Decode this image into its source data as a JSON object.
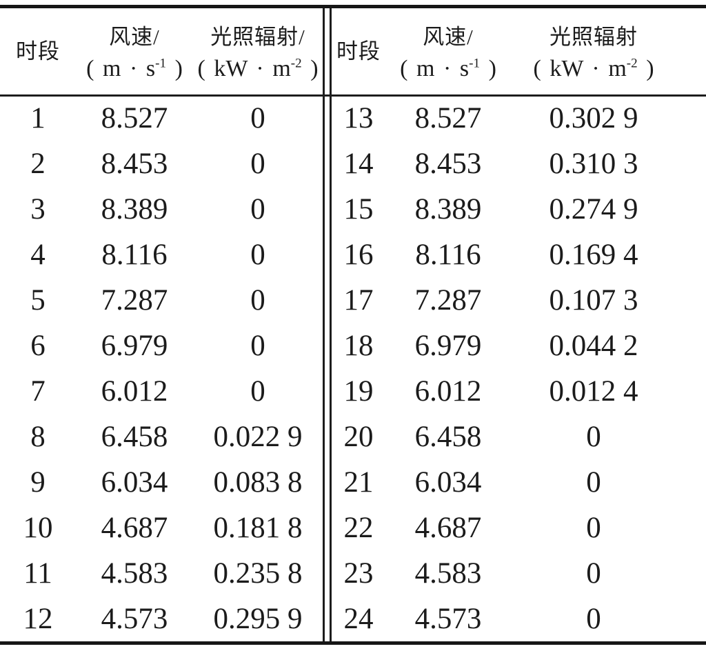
{
  "table": {
    "halves": [
      {
        "period_header": "时段",
        "wind_header": "风速/",
        "wind_unit": {
          "pre": "( m · s",
          "sup": "-1",
          "post": " )"
        },
        "irr_header": "光照辐射/",
        "irr_unit": {
          "pre": "( kW · m",
          "sup": "-2",
          "post": " )"
        },
        "rows": [
          {
            "period": "1",
            "wind": "8.527",
            "irr": "0"
          },
          {
            "period": "2",
            "wind": "8.453",
            "irr": "0"
          },
          {
            "period": "3",
            "wind": "8.389",
            "irr": "0"
          },
          {
            "period": "4",
            "wind": "8.116",
            "irr": "0"
          },
          {
            "period": "5",
            "wind": "7.287",
            "irr": "0"
          },
          {
            "period": "6",
            "wind": "6.979",
            "irr": "0"
          },
          {
            "period": "7",
            "wind": "6.012",
            "irr": "0"
          },
          {
            "period": "8",
            "wind": "6.458",
            "irr": "0.022 9"
          },
          {
            "period": "9",
            "wind": "6.034",
            "irr": "0.083 8"
          },
          {
            "period": "10",
            "wind": "4.687",
            "irr": "0.181 8"
          },
          {
            "period": "11",
            "wind": "4.583",
            "irr": "0.235 8"
          },
          {
            "period": "12",
            "wind": "4.573",
            "irr": "0.295 9"
          }
        ]
      },
      {
        "period_header": "时段",
        "wind_header": "风速/",
        "wind_unit": {
          "pre": "( m · s",
          "sup": "-1",
          "post": " )"
        },
        "irr_header": "光照辐射",
        "irr_unit": {
          "pre": "( kW · m",
          "sup": "-2",
          "post": " )"
        },
        "rows": [
          {
            "period": "13",
            "wind": "8.527",
            "irr": "0.302 9"
          },
          {
            "period": "14",
            "wind": "8.453",
            "irr": "0.310 3"
          },
          {
            "period": "15",
            "wind": "8.389",
            "irr": "0.274 9"
          },
          {
            "period": "16",
            "wind": "8.116",
            "irr": "0.169 4"
          },
          {
            "period": "17",
            "wind": "7.287",
            "irr": "0.107 3"
          },
          {
            "period": "18",
            "wind": "6.979",
            "irr": "0.044 2"
          },
          {
            "period": "19",
            "wind": "6.012",
            "irr": "0.012 4"
          },
          {
            "period": "20",
            "wind": "6.458",
            "irr": "0"
          },
          {
            "period": "21",
            "wind": "6.034",
            "irr": "0"
          },
          {
            "period": "22",
            "wind": "4.687",
            "irr": "0"
          },
          {
            "period": "23",
            "wind": "4.583",
            "irr": "0"
          },
          {
            "period": "24",
            "wind": "4.573",
            "irr": "0"
          }
        ]
      }
    ]
  }
}
